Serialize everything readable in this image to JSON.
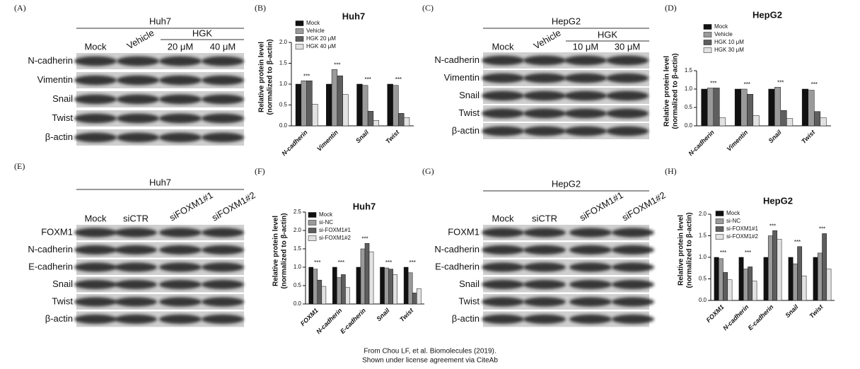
{
  "blots": [
    {
      "panel": "(A)",
      "cell": "Huh7",
      "group": "HGK",
      "lanes": [
        "Mock",
        "Vehicle",
        "20 μM",
        "40 μM"
      ],
      "rows": [
        "N-cadherin",
        "Vimentin",
        "Snail",
        "Twist",
        "β-actin"
      ]
    },
    {
      "panel": "(C)",
      "cell": "HepG2",
      "group": "HGK",
      "lanes": [
        "Mock",
        "Vehicle",
        "10 μM",
        "30 μM"
      ],
      "rows": [
        "N-cadherin",
        "Vimentin",
        "Snail",
        "Twist",
        "β-actin"
      ]
    },
    {
      "panel": "(E)",
      "cell": "Huh7",
      "lanes": [
        "Mock",
        "siCTR",
        "siFOXM1#1",
        "siFOXM1#2"
      ],
      "rows": [
        "FOXM1",
        "N-cadherin",
        "E-cadherin",
        "Snail",
        "Twist",
        "β-actin"
      ]
    },
    {
      "panel": "(G)",
      "cell": "HepG2",
      "lanes": [
        "Mock",
        "siCTR",
        "siFOXM1#1",
        "siFOXM1#2"
      ],
      "rows": [
        "FOXM1",
        "N-cadherin",
        "E-cadherin",
        "Snail",
        "Twist",
        "β-actin"
      ]
    }
  ],
  "chart_data": [
    {
      "type": "bar",
      "panel": "(B)",
      "title": "Huh7",
      "y_label": [
        "Relative protein level",
        "(normalized to β-actin)"
      ],
      "categories": [
        "N-cadherin",
        "Vimentin",
        "Snail",
        "Twist"
      ],
      "series": [
        {
          "name": "Mock",
          "color": "#111111",
          "values": [
            1.0,
            1.0,
            1.0,
            1.0
          ]
        },
        {
          "name": "Vehicle",
          "color": "#9a9a9a",
          "values": [
            1.08,
            1.35,
            0.97,
            0.97
          ]
        },
        {
          "name": "HGK 20 μM",
          "color": "#5e5e5e",
          "values": [
            1.08,
            1.2,
            0.35,
            0.3
          ]
        },
        {
          "name": "HGK 40 μM",
          "color": "#e2e2e2",
          "values": [
            0.52,
            0.75,
            0.13,
            0.2
          ]
        }
      ],
      "annotations": [
        "***",
        "***",
        "***",
        "***"
      ],
      "ylim": [
        0,
        2
      ],
      "yticks": [
        {
          "value": 0,
          "label": "0.0"
        },
        0.5,
        {
          "value": 1,
          "label": "1.0"
        },
        1.5,
        {
          "value": 2,
          "label": "2.0"
        }
      ],
      "legend": "top-left"
    },
    {
      "type": "bar",
      "panel": "(D)",
      "title": "HepG2",
      "y_label": [
        "Relative protein level",
        "(normalized to β-actin)"
      ],
      "categories": [
        "N-cadherin",
        "Vimentin",
        "Snail",
        "Twist"
      ],
      "series": [
        {
          "name": "Mock",
          "color": "#111111",
          "values": [
            1.0,
            1.0,
            1.0,
            1.0
          ]
        },
        {
          "name": "Vehicle",
          "color": "#9a9a9a",
          "values": [
            1.03,
            1.0,
            1.05,
            0.97
          ]
        },
        {
          "name": "HGK 10 μM",
          "color": "#5e5e5e",
          "values": [
            1.03,
            0.86,
            0.42,
            0.39
          ]
        },
        {
          "name": "HGK 30 μM",
          "color": "#e2e2e2",
          "values": [
            0.22,
            0.28,
            0.2,
            0.22
          ]
        }
      ],
      "annotations": [
        "***",
        "***",
        "***",
        "***"
      ],
      "ylim": [
        0,
        1.5
      ],
      "yticks": [
        {
          "value": 0,
          "label": "0.0"
        },
        0.5,
        {
          "value": 1,
          "label": "1.0"
        },
        1.5
      ],
      "legend": "top-left"
    },
    {
      "type": "bar",
      "panel": "(F)",
      "title": "Huh7",
      "y_label": [
        "Relative protein level",
        "(normalized to β-actin)"
      ],
      "categories": [
        "FOXM1",
        "N-cadherin",
        "E-cadherin",
        "Snail",
        "Twist"
      ],
      "series": [
        {
          "name": "Mock",
          "color": "#111111",
          "values": [
            1.0,
            1.0,
            1.0,
            1.0,
            1.0
          ]
        },
        {
          "name": "si-NC",
          "color": "#9a9a9a",
          "values": [
            0.95,
            0.72,
            1.5,
            0.98,
            0.85
          ]
        },
        {
          "name": "si-FOXM1#1",
          "color": "#5e5e5e",
          "values": [
            0.65,
            0.8,
            1.65,
            0.95,
            0.3
          ]
        },
        {
          "name": "si-FOXM1#2",
          "color": "#e2e2e2",
          "values": [
            0.48,
            0.45,
            1.42,
            0.8,
            0.42
          ]
        }
      ],
      "annotations": [
        "***",
        "***",
        "***",
        "***",
        "***"
      ],
      "ylim": [
        0,
        2.5
      ],
      "yticks": [
        {
          "value": 0,
          "label": "0.0"
        },
        0.5,
        {
          "value": 1,
          "label": "1.0"
        },
        1.5,
        {
          "value": 2,
          "label": "2.0"
        },
        2.5
      ],
      "legend": "top-left"
    },
    {
      "type": "bar",
      "panel": "(H)",
      "title": "HepG2",
      "y_label": [
        "Relative protein level",
        "(normalized to β-actin)"
      ],
      "categories": [
        "FOXM1",
        "N-cadherin",
        "E-cadherin",
        "Snail",
        "Twist"
      ],
      "series": [
        {
          "name": "Mock",
          "color": "#111111",
          "values": [
            1.0,
            1.0,
            1.0,
            1.0,
            1.0
          ]
        },
        {
          "name": "si-NC",
          "color": "#9a9a9a",
          "values": [
            0.97,
            0.73,
            1.5,
            0.85,
            1.1
          ]
        },
        {
          "name": "si-FOXM1#1",
          "color": "#5e5e5e",
          "values": [
            0.65,
            0.78,
            1.62,
            1.25,
            1.55
          ]
        },
        {
          "name": "si-FOXM1#2",
          "color": "#e2e2e2",
          "values": [
            0.48,
            0.45,
            1.42,
            0.57,
            0.73
          ]
        }
      ],
      "annotations": [
        "***",
        "***",
        "***",
        "***",
        "***"
      ],
      "ylim": [
        0,
        2
      ],
      "yticks": [
        {
          "value": 0,
          "label": "0.0"
        },
        0.5,
        {
          "value": 1,
          "label": "1.0"
        },
        1.5,
        {
          "value": 2,
          "label": "2.0"
        }
      ],
      "legend": "top-left"
    }
  ],
  "footer": [
    "From Chou LF, et al. Biomolecules (2019).",
    "Shown under license agreement via CiteAb"
  ]
}
